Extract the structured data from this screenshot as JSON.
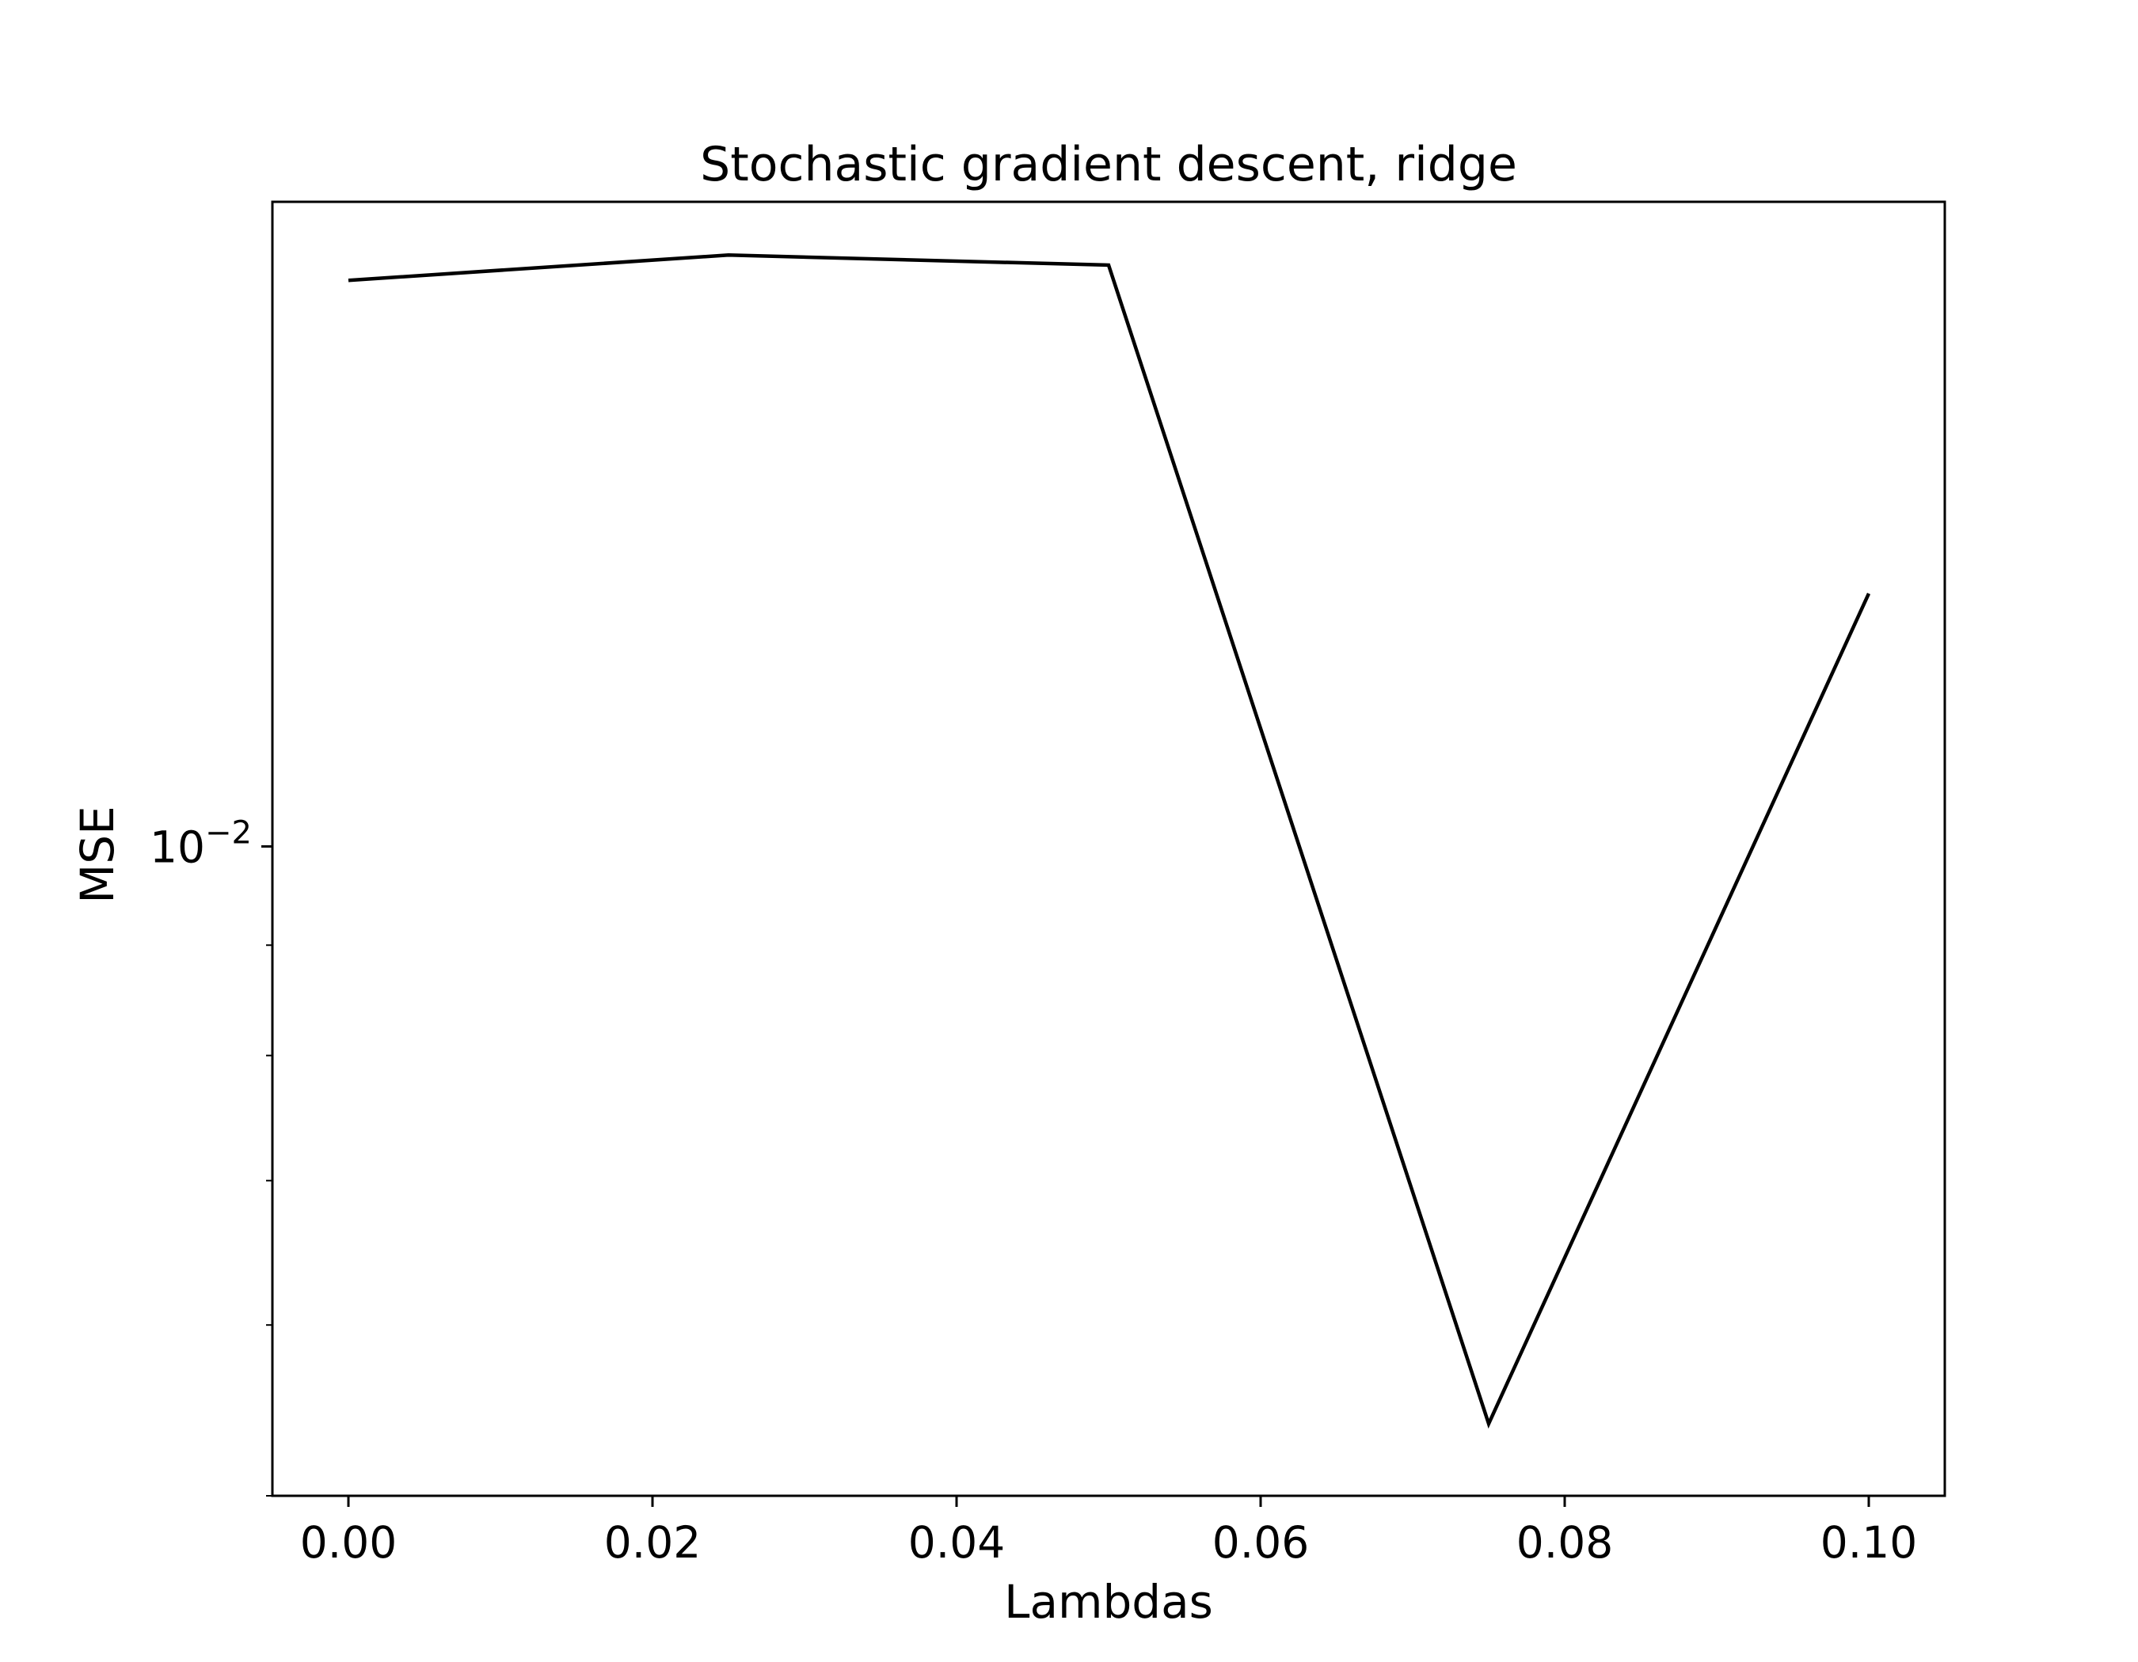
{
  "chart_data": {
    "type": "line",
    "title": "Stochastic gradient descent, ridge",
    "xlabel": "Lambdas",
    "ylabel": "MSE",
    "x": [
      0.0,
      0.025,
      0.05,
      0.075,
      0.1
    ],
    "series": [
      {
        "values": [
          0.0183,
          0.0188,
          0.0186,
          0.0054,
          0.0131
        ],
        "color": "#000000"
      }
    ],
    "xlim": [
      -0.005,
      0.105
    ],
    "ylim": [
      0.005,
      0.0199
    ],
    "yscale": "log",
    "xticks": [
      {
        "value": 0.0,
        "label": "0.00"
      },
      {
        "value": 0.02,
        "label": "0.02"
      },
      {
        "value": 0.04,
        "label": "0.04"
      },
      {
        "value": 0.06,
        "label": "0.06"
      },
      {
        "value": 0.08,
        "label": "0.08"
      },
      {
        "value": 0.1,
        "label": "0.10"
      }
    ],
    "yticks_major": [
      {
        "value": 0.01,
        "label_base": "10",
        "label_exp": "−2"
      }
    ],
    "yticks_minor": [
      0.005,
      0.006,
      0.007,
      0.008,
      0.009,
      0.02
    ],
    "grid": false,
    "legend": "none"
  }
}
